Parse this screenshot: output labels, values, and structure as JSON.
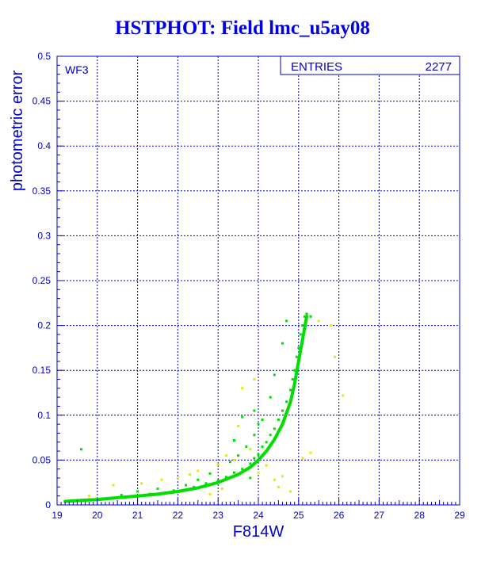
{
  "chart_data": {
    "type": "scatter",
    "title": "HSTPHOT: Field lmc_u5ay08",
    "xlabel": "F814W",
    "ylabel": "photometric error",
    "xlim": [
      19,
      29
    ],
    "ylim": [
      0,
      0.5
    ],
    "xticks": [
      "19",
      "20",
      "21",
      "22",
      "23",
      "24",
      "25",
      "26",
      "27",
      "28",
      "29"
    ],
    "yticks": [
      "0",
      "0.05",
      "0.1",
      "0.15",
      "0.2",
      "0.25",
      "0.3",
      "0.35",
      "0.4",
      "0.45",
      "0.5"
    ],
    "grid": true,
    "panel_label": "WF3",
    "stats_box": {
      "label": "ENTRIES",
      "value": "2277"
    },
    "colors": {
      "axis": "#0000cc",
      "grid": "#0000cc",
      "main": "#00dd00",
      "outlier": "#e8e800",
      "title": "#0000e0"
    },
    "series": [
      {
        "name": "",
        "color": "#00dd00",
        "trend": [
          [
            19.2,
            0.004
          ],
          [
            19.6,
            0.005
          ],
          [
            20.0,
            0.006
          ],
          [
            20.5,
            0.008
          ],
          [
            21.0,
            0.01
          ],
          [
            21.5,
            0.012
          ],
          [
            22.0,
            0.015
          ],
          [
            22.5,
            0.019
          ],
          [
            23.0,
            0.025
          ],
          [
            23.5,
            0.034
          ],
          [
            23.8,
            0.042
          ],
          [
            24.0,
            0.05
          ],
          [
            24.2,
            0.06
          ],
          [
            24.4,
            0.073
          ],
          [
            24.6,
            0.09
          ],
          [
            24.8,
            0.115
          ],
          [
            24.9,
            0.135
          ],
          [
            25.0,
            0.16
          ],
          [
            25.1,
            0.185
          ],
          [
            25.2,
            0.21
          ]
        ],
        "points": [
          [
            19.3,
            0.004
          ],
          [
            19.5,
            0.005
          ],
          [
            19.8,
            0.006
          ],
          [
            20.2,
            0.007
          ],
          [
            20.8,
            0.009
          ],
          [
            21.3,
            0.012
          ],
          [
            21.9,
            0.016
          ],
          [
            22.4,
            0.02
          ],
          [
            22.7,
            0.024
          ],
          [
            23.0,
            0.027
          ],
          [
            23.2,
            0.031
          ],
          [
            23.4,
            0.036
          ],
          [
            23.6,
            0.04
          ],
          [
            23.8,
            0.046
          ],
          [
            23.9,
            0.052
          ],
          [
            24.0,
            0.056
          ],
          [
            24.1,
            0.065
          ],
          [
            24.2,
            0.07
          ],
          [
            24.3,
            0.078
          ],
          [
            24.4,
            0.085
          ],
          [
            24.5,
            0.095
          ],
          [
            24.6,
            0.105
          ],
          [
            24.7,
            0.115
          ],
          [
            24.8,
            0.128
          ],
          [
            24.85,
            0.14
          ],
          [
            24.9,
            0.15
          ],
          [
            24.95,
            0.165
          ],
          [
            25.0,
            0.175
          ],
          [
            25.05,
            0.19
          ],
          [
            25.1,
            0.2
          ],
          [
            25.15,
            0.21
          ],
          [
            25.2,
            0.213
          ],
          [
            25.3,
            0.21
          ],
          [
            24.7,
            0.205
          ],
          [
            24.6,
            0.18
          ],
          [
            24.4,
            0.145
          ],
          [
            24.3,
            0.12
          ],
          [
            24.1,
            0.095
          ],
          [
            23.9,
            0.078
          ],
          [
            23.7,
            0.065
          ],
          [
            23.5,
            0.055
          ],
          [
            23.3,
            0.048
          ],
          [
            23.6,
            0.098
          ],
          [
            23.9,
            0.105
          ],
          [
            24.0,
            0.09
          ],
          [
            22.8,
            0.035
          ],
          [
            22.5,
            0.028
          ],
          [
            22.2,
            0.022
          ],
          [
            21.5,
            0.018
          ],
          [
            21.0,
            0.015
          ],
          [
            20.6,
            0.011
          ],
          [
            19.6,
            0.062
          ],
          [
            23.4,
            0.072
          ],
          [
            23.8,
            0.03
          ]
        ]
      },
      {
        "name": "",
        "color": "#e8e800",
        "points": [
          [
            19.8,
            0.01
          ],
          [
            20.4,
            0.022
          ],
          [
            21.1,
            0.024
          ],
          [
            21.6,
            0.028
          ],
          [
            22.0,
            0.03
          ],
          [
            22.3,
            0.034
          ],
          [
            22.5,
            0.038
          ],
          [
            22.8,
            0.012
          ],
          [
            23.0,
            0.045
          ],
          [
            23.2,
            0.055
          ],
          [
            23.4,
            0.05
          ],
          [
            23.5,
            0.088
          ],
          [
            23.6,
            0.13
          ],
          [
            23.8,
            0.062
          ],
          [
            24.0,
            0.036
          ],
          [
            24.2,
            0.044
          ],
          [
            24.4,
            0.028
          ],
          [
            24.6,
            0.032
          ],
          [
            24.8,
            0.015
          ],
          [
            25.1,
            0.052
          ],
          [
            25.3,
            0.058
          ],
          [
            25.5,
            0.205
          ],
          [
            25.8,
            0.2
          ],
          [
            25.9,
            0.165
          ],
          [
            26.1,
            0.122
          ],
          [
            23.9,
            0.14
          ],
          [
            24.5,
            0.02
          ],
          [
            23.1,
            0.018
          ]
        ]
      }
    ]
  }
}
